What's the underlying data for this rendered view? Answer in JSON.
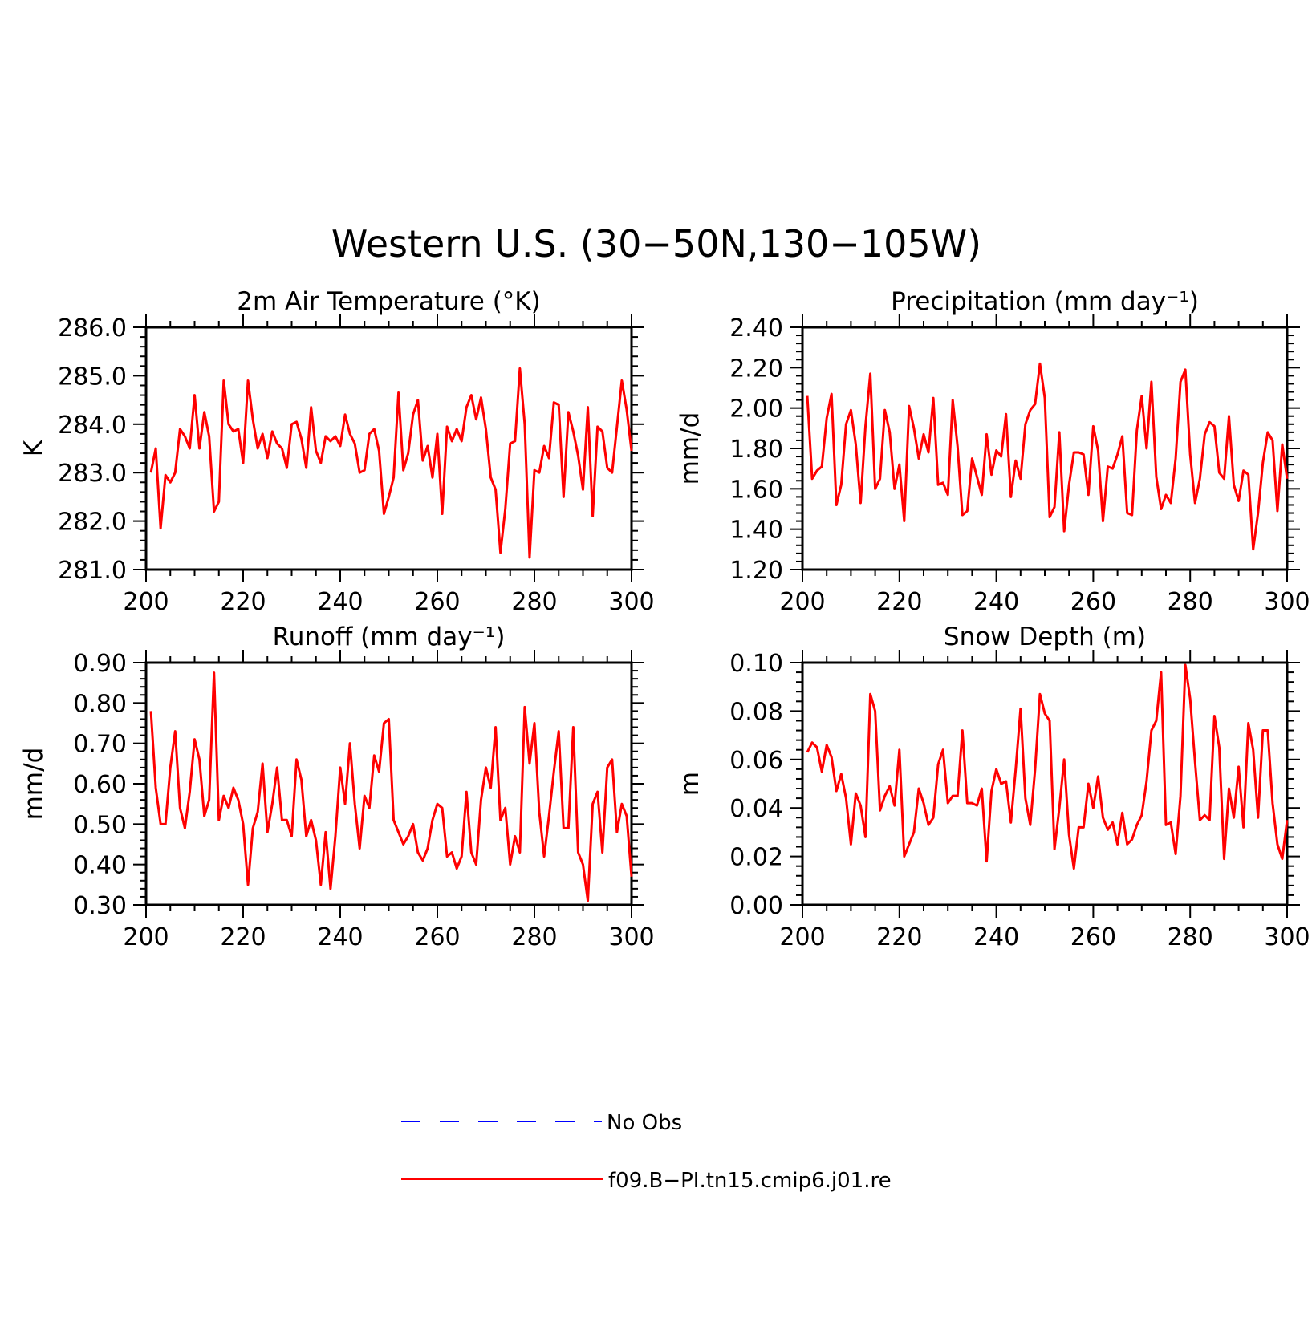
{
  "figure": {
    "title": "Western U.S. (30−50N,130−105W)"
  },
  "colors": {
    "model": "#ff0000",
    "obs": "#0000ff",
    "axis": "#000000"
  },
  "legend": {
    "items": [
      {
        "label": "No Obs",
        "style": "dashed",
        "color": "#0000ff"
      },
      {
        "label": "f09.B−PI.tn15.cmip6.j01.re",
        "style": "solid",
        "color": "#ff0000"
      }
    ]
  },
  "chart_data": [
    {
      "type": "line",
      "title": "2m Air Temperature (°K)",
      "ylabel": "K",
      "xlim": [
        200,
        300
      ],
      "ylim": [
        281.0,
        286.0
      ],
      "xticks": [
        "200",
        "220",
        "240",
        "260",
        "280",
        "300"
      ],
      "yticks": [
        "281.0",
        "282.0",
        "283.0",
        "284.0",
        "285.0",
        "286.0"
      ],
      "series": [
        {
          "name": "f09.B−PI.tn15.cmip6.j01.re",
          "x_start": 201,
          "x_step": 1,
          "values": [
            283.0,
            283.5,
            281.85,
            282.95,
            282.8,
            283.0,
            283.9,
            283.75,
            283.5,
            284.6,
            283.5,
            284.25,
            283.75,
            282.2,
            282.4,
            284.9,
            284.0,
            283.85,
            283.9,
            283.2,
            284.9,
            284.1,
            283.5,
            283.8,
            283.3,
            283.85,
            283.6,
            283.5,
            283.1,
            284.0,
            284.05,
            283.7,
            283.1,
            284.35,
            283.45,
            283.2,
            283.75,
            283.65,
            283.75,
            283.55,
            284.2,
            283.8,
            283.6,
            283.0,
            283.05,
            283.8,
            283.9,
            283.45,
            282.15,
            282.5,
            282.9,
            284.65,
            283.05,
            283.4,
            284.2,
            284.5,
            283.25,
            283.55,
            282.9,
            283.8,
            282.15,
            283.95,
            283.65,
            283.9,
            283.65,
            284.35,
            284.6,
            284.1,
            284.55,
            283.9,
            282.9,
            282.65,
            281.35,
            282.25,
            283.6,
            283.65,
            285.15,
            284.0,
            281.25,
            283.05,
            283.0,
            283.55,
            283.3,
            284.45,
            284.4,
            282.5,
            284.25,
            283.85,
            283.35,
            282.65,
            284.35,
            282.1,
            283.95,
            283.85,
            283.1,
            283.0,
            283.95,
            284.9,
            284.3,
            283.45
          ]
        }
      ]
    },
    {
      "type": "line",
      "title": "Precipitation (mm day⁻¹)",
      "ylabel": "mm/d",
      "xlim": [
        200,
        300
      ],
      "ylim": [
        1.2,
        2.4
      ],
      "xticks": [
        "200",
        "220",
        "240",
        "260",
        "280",
        "300"
      ],
      "yticks": [
        "1.20",
        "1.40",
        "1.60",
        "1.80",
        "2.00",
        "2.20",
        "2.40"
      ],
      "series": [
        {
          "name": "f09.B−PI.tn15.cmip6.j01.re",
          "x_start": 201,
          "x_step": 1,
          "values": [
            2.06,
            1.65,
            1.69,
            1.71,
            1.95,
            2.07,
            1.52,
            1.62,
            1.92,
            1.99,
            1.82,
            1.53,
            1.91,
            2.17,
            1.6,
            1.65,
            1.99,
            1.88,
            1.6,
            1.72,
            1.44,
            2.01,
            1.9,
            1.75,
            1.87,
            1.78,
            2.05,
            1.62,
            1.63,
            1.57,
            2.04,
            1.81,
            1.47,
            1.49,
            1.75,
            1.66,
            1.57,
            1.87,
            1.67,
            1.79,
            1.76,
            1.97,
            1.56,
            1.74,
            1.65,
            1.92,
            1.99,
            2.02,
            2.22,
            2.05,
            1.46,
            1.51,
            1.88,
            1.39,
            1.62,
            1.78,
            1.78,
            1.77,
            1.57,
            1.91,
            1.79,
            1.44,
            1.71,
            1.7,
            1.77,
            1.86,
            1.48,
            1.47,
            1.89,
            2.06,
            1.8,
            2.13,
            1.66,
            1.5,
            1.57,
            1.53,
            1.75,
            2.13,
            2.19,
            1.77,
            1.53,
            1.65,
            1.87,
            1.93,
            1.91,
            1.68,
            1.65,
            1.96,
            1.62,
            1.54,
            1.69,
            1.67,
            1.3,
            1.48,
            1.73,
            1.88,
            1.84,
            1.49,
            1.82,
            1.65
          ]
        }
      ]
    },
    {
      "type": "line",
      "title": "Runoff (mm day⁻¹)",
      "ylabel": "mm/d",
      "xlim": [
        200,
        300
      ],
      "ylim": [
        0.3,
        0.9
      ],
      "xticks": [
        "200",
        "220",
        "240",
        "260",
        "280",
        "300"
      ],
      "yticks": [
        "0.30",
        "0.40",
        "0.50",
        "0.60",
        "0.70",
        "0.80",
        "0.90"
      ],
      "series": [
        {
          "name": "f09.B−PI.tn15.cmip6.j01.re",
          "x_start": 201,
          "x_step": 1,
          "values": [
            0.78,
            0.59,
            0.5,
            0.5,
            0.64,
            0.73,
            0.54,
            0.49,
            0.58,
            0.71,
            0.66,
            0.52,
            0.56,
            0.875,
            0.51,
            0.57,
            0.54,
            0.59,
            0.56,
            0.5,
            0.35,
            0.49,
            0.53,
            0.65,
            0.48,
            0.55,
            0.64,
            0.51,
            0.51,
            0.47,
            0.66,
            0.61,
            0.47,
            0.51,
            0.46,
            0.35,
            0.48,
            0.34,
            0.47,
            0.64,
            0.55,
            0.7,
            0.55,
            0.44,
            0.57,
            0.54,
            0.67,
            0.63,
            0.75,
            0.76,
            0.51,
            0.48,
            0.45,
            0.47,
            0.5,
            0.43,
            0.41,
            0.44,
            0.51,
            0.55,
            0.54,
            0.42,
            0.43,
            0.39,
            0.42,
            0.58,
            0.43,
            0.4,
            0.56,
            0.64,
            0.59,
            0.74,
            0.51,
            0.54,
            0.4,
            0.47,
            0.43,
            0.79,
            0.65,
            0.75,
            0.53,
            0.42,
            0.52,
            0.63,
            0.73,
            0.49,
            0.49,
            0.74,
            0.43,
            0.4,
            0.31,
            0.55,
            0.58,
            0.43,
            0.64,
            0.66,
            0.48,
            0.55,
            0.52,
            0.37
          ]
        }
      ]
    },
    {
      "type": "line",
      "title": "Snow Depth (m)",
      "ylabel": "m",
      "xlim": [
        200,
        300
      ],
      "ylim": [
        0.0,
        0.1
      ],
      "xticks": [
        "200",
        "220",
        "240",
        "260",
        "280",
        "300"
      ],
      "yticks": [
        "0.00",
        "0.02",
        "0.04",
        "0.06",
        "0.08",
        "0.10"
      ],
      "series": [
        {
          "name": "f09.B−PI.tn15.cmip6.j01.re",
          "x_start": 201,
          "x_step": 1,
          "values": [
            0.063,
            0.067,
            0.065,
            0.055,
            0.066,
            0.061,
            0.047,
            0.054,
            0.044,
            0.025,
            0.046,
            0.041,
            0.028,
            0.087,
            0.08,
            0.039,
            0.045,
            0.049,
            0.041,
            0.064,
            0.02,
            0.025,
            0.03,
            0.048,
            0.042,
            0.033,
            0.036,
            0.058,
            0.064,
            0.042,
            0.045,
            0.045,
            0.072,
            0.042,
            0.042,
            0.041,
            0.048,
            0.018,
            0.047,
            0.056,
            0.05,
            0.051,
            0.034,
            0.056,
            0.081,
            0.044,
            0.033,
            0.056,
            0.087,
            0.079,
            0.076,
            0.023,
            0.04,
            0.06,
            0.029,
            0.015,
            0.032,
            0.032,
            0.05,
            0.04,
            0.053,
            0.036,
            0.031,
            0.034,
            0.025,
            0.038,
            0.025,
            0.027,
            0.033,
            0.037,
            0.051,
            0.072,
            0.076,
            0.096,
            0.033,
            0.034,
            0.021,
            0.045,
            0.099,
            0.085,
            0.059,
            0.035,
            0.037,
            0.035,
            0.078,
            0.065,
            0.019,
            0.048,
            0.036,
            0.057,
            0.032,
            0.075,
            0.064,
            0.036,
            0.072,
            0.072,
            0.042,
            0.025,
            0.019,
            0.035
          ]
        }
      ]
    }
  ]
}
